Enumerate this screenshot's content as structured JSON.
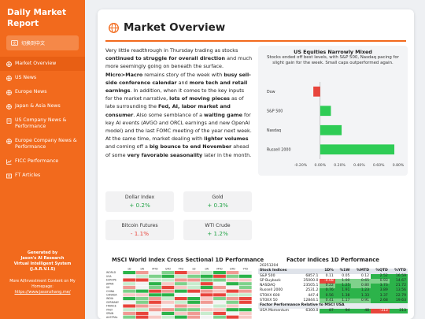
{
  "sidebar": {
    "brand_line1": "Daily Market",
    "brand_line2": "Report",
    "lang_label": "切换到中文",
    "items": [
      {
        "label": "Market Overview",
        "icon": "globe-icon"
      },
      {
        "label": "US News",
        "icon": "globe-icon"
      },
      {
        "label": "Europe News",
        "icon": "globe-icon"
      },
      {
        "label": "Japan & Asia News",
        "icon": "globe-icon"
      },
      {
        "label": "US Company News & Performance",
        "icon": "building-icon"
      },
      {
        "label": "Europe Company News & Performance",
        "icon": "globe-icon"
      },
      {
        "label": "FICC Performance",
        "icon": "chart-icon"
      },
      {
        "label": "FT Articles",
        "icon": "news-icon"
      }
    ],
    "footer": {
      "generated_by": "Generated by",
      "author": "Jason's AI Research",
      "system": "Virtual Intelligent System",
      "acronym": "(J.A.R.V.I.S)",
      "more_text": "More AI/Investment Content on My Homepage:",
      "link": "https://www.jasonzhang.me/"
    }
  },
  "main": {
    "title": "Market Overview",
    "narrative": [
      {
        "t": "Very little readthrough in Thursday trading as stocks ",
        "b": false
      },
      {
        "t": "continued to struggle for overall direction",
        "b": true
      },
      {
        "t": " and much more seemingly going on beneath the surface. ",
        "b": false
      },
      {
        "t": "Micro>Macro",
        "b": true
      },
      {
        "t": " remains story of the week with ",
        "b": false
      },
      {
        "t": "busy sell-side conference calendar",
        "b": true
      },
      {
        "t": " and ",
        "b": false
      },
      {
        "t": "more tech and retail earnings",
        "b": true
      },
      {
        "t": ". In addition, when it comes to the key inputs for the market narrative, ",
        "b": false
      },
      {
        "t": "lots of moving pieces",
        "b": true
      },
      {
        "t": " as of late surrounding the ",
        "b": false
      },
      {
        "t": "Fed, AI, labor market and consumer",
        "b": true
      },
      {
        "t": ". Also some semblance of a ",
        "b": false
      },
      {
        "t": "waiting game",
        "b": true
      },
      {
        "t": " for key AI events (AVGO and ORCL earnings and new OpenAI model) and the last FOMC meeting of the year next week. At the same time, market dealing with ",
        "b": false
      },
      {
        "t": "lighter volumes",
        "b": true
      },
      {
        "t": " and coming off a ",
        "b": false
      },
      {
        "t": "big bounce to end November",
        "b": true
      },
      {
        "t": " ahead of some ",
        "b": false
      },
      {
        "t": "very favorable seasonality",
        "b": true
      },
      {
        "t": " later in the month.",
        "b": false
      }
    ],
    "stats": [
      {
        "label": "Dollar Index",
        "value": "+ 0.2%",
        "dir": "pos"
      },
      {
        "label": "Gold",
        "value": "+ 0.3%",
        "dir": "pos"
      },
      {
        "label": "Bitcoin Futures",
        "value": "- 1.1%",
        "dir": "neg"
      },
      {
        "label": "WTI Crude",
        "value": "+ 1.2%",
        "dir": "pos"
      }
    ],
    "msci_title": "MSCI World Index Cross Sectional 1D Performance",
    "factor_title": "Factor Indices 1D Performance",
    "factor_table": {
      "date": "20251204",
      "headers": [
        "Stock Indices",
        "",
        "1D%",
        "%1W",
        "%MTD",
        "%QTD",
        "%YTD"
      ],
      "rows": [
        [
          "S&P 500",
          "6857.1",
          "0.11",
          "0.05",
          "0.12",
          "2.52",
          "16.59"
        ],
        [
          "SP Buyback",
          "35000.0",
          "-0.08",
          "1.00",
          "0.65",
          "0.93",
          "14.67"
        ],
        [
          "NASDAQ",
          "23505.1",
          "0.22",
          "1.25",
          "0.80",
          "3.73",
          "21.72"
        ],
        [
          "Russell 2000",
          "2531.2",
          "0.76",
          "1.91",
          "1.23",
          "3.89",
          "13.56"
        ],
        [
          "STOXX 600",
          "447.4",
          "0.56",
          "1.38",
          "1.33",
          "3.37",
          "22.79"
        ],
        [
          "STOXX 50",
          "12844.1",
          "0.41",
          "1.17",
          "0.91",
          "2.68",
          "19.63"
        ]
      ],
      "section2": "Factor Performance Relative to MSCI USA",
      "rows2": [
        [
          "USA Momentum",
          "6300.0",
          "87",
          "94",
          "48",
          "-313",
          "213"
        ]
      ]
    }
  },
  "chart_data": {
    "type": "bar",
    "title": "US Equities Narrowly Mixed",
    "subtitle": "Stocks ended off best levels, with S&P 500, Nasdaq pacing for slight gain for the week. Small caps outperformed again.",
    "categories": [
      "Dow",
      "S&P 500",
      "Nasdaq",
      "Russell 2000"
    ],
    "values": [
      -0.07,
      0.11,
      0.22,
      0.76
    ],
    "xlim": [
      -0.2,
      0.8
    ],
    "xticks": [
      "-0.20%",
      "0.00%",
      "0.20%",
      "0.40%",
      "0.60%",
      "0.80%"
    ],
    "colors": {
      "pos": "#2ecc55",
      "neg": "#e8453c"
    }
  },
  "msci_heatmap": {
    "columns": [
      "1D",
      "1W",
      "MTD",
      "QTD",
      "YTD",
      "1D",
      "1W",
      "MTD",
      "QTD",
      "YTD"
    ],
    "rows": [
      "WORLD",
      "USA",
      "EUROPE",
      "JAPAN",
      "UK",
      "CHINA",
      "CANADA",
      "INDIA",
      "GERMANY",
      "FRANCE",
      "ITALY",
      "SPAIN",
      "AUSTRAL"
    ]
  }
}
